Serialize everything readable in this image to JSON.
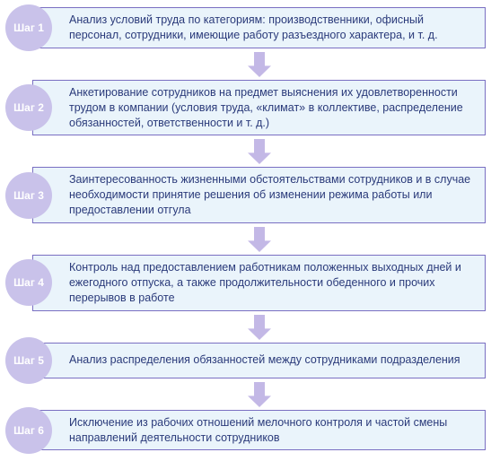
{
  "colors": {
    "box_bg": "#eaf4fb",
    "box_border": "#7a6fc2",
    "box_text": "#2a3a7a",
    "badge_bg": "#c9c2ea",
    "badge_text": "#ffffff",
    "arrow": "#c3b8e6"
  },
  "layout": {
    "box_border_width": 1.5,
    "badge_diameter": 52,
    "arrow_width": 26,
    "arrow_height": 28,
    "font_size_text": 12.5,
    "font_size_badge": 12
  },
  "steps": [
    {
      "label": "Шаг 1",
      "text": "Анализ условий труда по категориям: производственники, офисный персонал, сотрудники, имеющие работу разъездного характера, и т. д."
    },
    {
      "label": "Шаг 2",
      "text": "Анкетирование сотрудников на предмет выяснения их удовлетворенности трудом в компании (условия труда, «климат» в коллективе, распределение обязанностей, ответственности и т. д.)"
    },
    {
      "label": "Шаг 3",
      "text": "Заинтересованность жизненными обстоятельствами сотрудников и в случае необходимости принятие решения об изменении режима работы или предоставлении отгула"
    },
    {
      "label": "Шаг 4",
      "text": "Контроль над предоставлением работникам положенных выходных дней и ежегодного отпуска, а также продолжительности обеденного и прочих перерывов в работе"
    },
    {
      "label": "Шаг 5",
      "text": "Анализ распределения обязанностей между сотрудниками подразделения"
    },
    {
      "label": "Шаг 6",
      "text": "Исключение из рабочих отношений мелочного контроля и частой смены направлений деятельности сотрудников"
    }
  ]
}
